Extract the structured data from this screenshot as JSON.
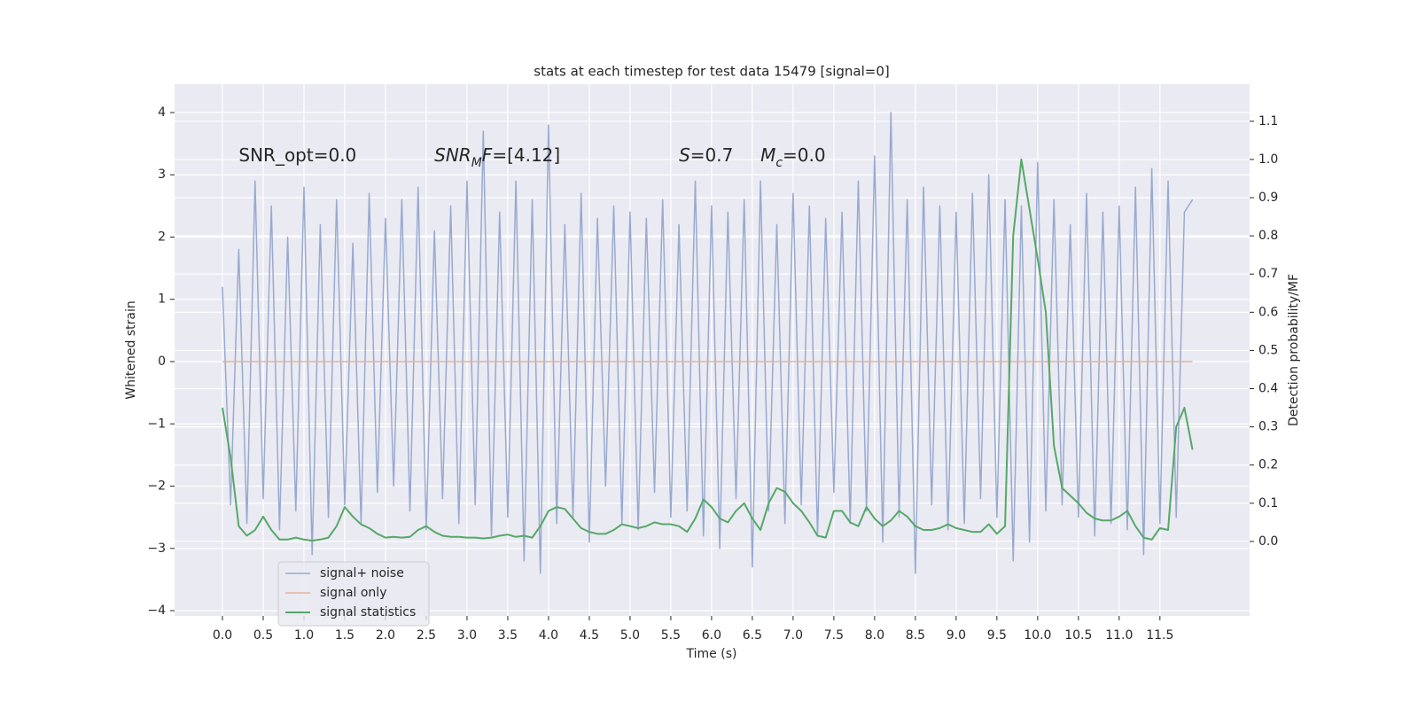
{
  "chart_data": {
    "type": "line",
    "title": "stats at each timestep for test data 15479 [signal=0]",
    "xlabel": "Time (s)",
    "ylabel": "Whitened strain",
    "y2label": "Detection probability/MF",
    "background": "#eaeaf2",
    "grid": true,
    "legend": "lower left",
    "annotations": [
      {
        "parts": [
          {
            "text": "SNR_opt=0.0"
          }
        ],
        "x": 0.2,
        "y": 3.3
      },
      {
        "parts": [
          {
            "text": "SNR",
            "style": "italic"
          },
          {
            "text": "M",
            "style": "sub"
          },
          {
            "text": "F",
            "style": "italic"
          },
          {
            "text": "=[4.12]"
          }
        ],
        "x": 2.6,
        "y": 3.3
      },
      {
        "parts": [
          {
            "text": "S",
            "style": "italic"
          },
          {
            "text": "=0.7"
          }
        ],
        "x": 5.6,
        "y": 3.3
      },
      {
        "parts": [
          {
            "text": "M",
            "style": "italic"
          },
          {
            "text": "c",
            "style": "sub"
          },
          {
            "text": "=0.0"
          }
        ],
        "x": 6.6,
        "y": 3.3
      }
    ],
    "xlim": [
      -0.587,
      12.6
    ],
    "ylim": [
      -4.085,
      4.455
    ],
    "y2lim": [
      -0.195,
      1.197
    ],
    "xticks": [
      {
        "value": 0,
        "label": "0.0"
      },
      {
        "value": 0.5,
        "label": "0.5"
      },
      {
        "value": 1,
        "label": "1.0"
      },
      {
        "value": 1.5,
        "label": "1.5"
      },
      {
        "value": 2,
        "label": "2.0"
      },
      {
        "value": 2.5,
        "label": "2.5"
      },
      {
        "value": 3,
        "label": "3.0"
      },
      {
        "value": 3.5,
        "label": "3.5"
      },
      {
        "value": 4,
        "label": "4.0"
      },
      {
        "value": 4.5,
        "label": "4.5"
      },
      {
        "value": 5,
        "label": "5.0"
      },
      {
        "value": 5.5,
        "label": "5.5"
      },
      {
        "value": 6,
        "label": "6.0"
      },
      {
        "value": 6.5,
        "label": "6.5"
      },
      {
        "value": 7,
        "label": "7.0"
      },
      {
        "value": 7.5,
        "label": "7.5"
      },
      {
        "value": 8,
        "label": "8.0"
      },
      {
        "value": 8.5,
        "label": "8.5"
      },
      {
        "value": 9,
        "label": "9.0"
      },
      {
        "value": 9.5,
        "label": "9.5"
      },
      {
        "value": 10,
        "label": "10.0"
      },
      {
        "value": 10.5,
        "label": "10.5"
      },
      {
        "value": 11,
        "label": "11.0"
      },
      {
        "value": 11.5,
        "label": "11.5"
      }
    ],
    "yticks": [
      {
        "value": -4,
        "label": "−4"
      },
      {
        "value": -3,
        "label": "−3"
      },
      {
        "value": -2,
        "label": "−2"
      },
      {
        "value": -1,
        "label": "−1"
      },
      0,
      1,
      2,
      3,
      4
    ],
    "y2ticks": [
      {
        "value": 0,
        "label": "0.0"
      },
      {
        "value": 0.1,
        "label": "0.1"
      },
      {
        "value": 0.2,
        "label": "0.2"
      },
      {
        "value": 0.3,
        "label": "0.3"
      },
      {
        "value": 0.4,
        "label": "0.4"
      },
      {
        "value": 0.5,
        "label": "0.5"
      },
      {
        "value": 0.6,
        "label": "0.6"
      },
      {
        "value": 0.7,
        "label": "0.7"
      },
      {
        "value": 0.8,
        "label": "0.8"
      },
      {
        "value": 0.9,
        "label": "0.9"
      },
      {
        "value": 1,
        "label": "1.0"
      },
      {
        "value": 1.1,
        "label": "1.1"
      }
    ],
    "x": [
      0,
      0.1,
      0.2,
      0.3,
      0.4,
      0.5,
      0.6,
      0.7,
      0.8,
      0.9,
      1,
      1.1,
      1.2,
      1.3,
      1.4,
      1.5,
      1.6,
      1.7,
      1.8,
      1.9,
      2,
      2.1,
      2.2,
      2.3,
      2.4,
      2.5,
      2.6,
      2.7,
      2.8,
      2.9,
      3,
      3.1,
      3.2,
      3.3,
      3.4,
      3.5,
      3.6,
      3.7,
      3.8,
      3.9,
      4,
      4.1,
      4.2,
      4.3,
      4.4,
      4.5,
      4.6,
      4.7,
      4.8,
      4.9,
      5,
      5.1,
      5.2,
      5.3,
      5.4,
      5.5,
      5.6,
      5.7,
      5.8,
      5.9,
      6,
      6.1,
      6.2,
      6.3,
      6.4,
      6.5,
      6.6,
      6.7,
      6.8,
      6.9,
      7,
      7.1,
      7.2,
      7.3,
      7.4,
      7.5,
      7.6,
      7.7,
      7.8,
      7.9,
      8,
      8.1,
      8.2,
      8.3,
      8.4,
      8.5,
      8.6,
      8.7,
      8.8,
      8.9,
      9,
      9.1,
      9.2,
      9.3,
      9.4,
      9.5,
      9.6,
      9.7,
      9.8,
      9.9,
      10,
      10.1,
      10.2,
      10.3,
      10.4,
      10.5,
      10.6,
      10.7,
      10.8,
      10.9,
      11,
      11.1,
      11.2,
      11.3,
      11.4,
      11.5,
      11.6,
      11.7,
      11.8,
      11.9
    ],
    "series": [
      {
        "name": "signal+ noise",
        "color": "#98aad0",
        "width": 1.5,
        "values": [
          1.2,
          -2.3,
          1.8,
          -2.6,
          2.9,
          -2.2,
          2.5,
          -2.7,
          2.0,
          -2.4,
          2.8,
          -3.1,
          2.2,
          -2.5,
          2.6,
          -2.3,
          1.9,
          -2.6,
          2.7,
          -2.1,
          2.3,
          -2.0,
          2.6,
          -2.4,
          2.8,
          -2.7,
          2.1,
          -2.2,
          2.5,
          -2.6,
          2.9,
          -2.3,
          3.7,
          -2.8,
          2.4,
          -2.5,
          2.9,
          -3.2,
          2.6,
          -3.4,
          3.8,
          -2.6,
          2.2,
          -2.5,
          2.7,
          -2.9,
          2.3,
          -2.0,
          2.5,
          -2.6,
          2.4,
          -2.7,
          2.3,
          -2.1,
          2.6,
          -2.5,
          2.2,
          -2.4,
          2.9,
          -2.8,
          2.5,
          -3.0,
          2.4,
          -2.2,
          2.6,
          -3.3,
          2.9,
          -2.4,
          2.2,
          -2.6,
          2.7,
          -2.3,
          2.5,
          -2.8,
          2.3,
          -2.1,
          2.4,
          -2.6,
          2.9,
          -2.4,
          3.3,
          -2.9,
          4.0,
          -2.5,
          2.6,
          -3.4,
          2.8,
          -2.3,
          2.5,
          -2.7,
          2.4,
          -2.6,
          2.7,
          -2.2,
          3.0,
          -2.5,
          2.6,
          -3.2,
          2.5,
          -2.9,
          3.2,
          -2.4,
          2.6,
          -2.3,
          2.2,
          -2.5,
          2.7,
          -2.8,
          2.4,
          -2.6,
          2.5,
          -2.7,
          2.8,
          -3.1,
          3.1,
          -2.6,
          2.9,
          -2.5,
          2.4,
          2.6
        ]
      },
      {
        "name": "signal only",
        "color": "#e8a88a",
        "width": 1.2,
        "values": [
          0,
          0,
          0,
          0,
          0,
          0,
          0,
          0,
          0,
          0,
          0,
          0,
          0,
          0,
          0,
          0,
          0,
          0,
          0,
          0,
          0,
          0,
          0,
          0,
          0,
          0,
          0,
          0,
          0,
          0,
          0,
          0,
          0,
          0,
          0,
          0,
          0,
          0,
          0,
          0,
          0,
          0,
          0,
          0,
          0,
          0,
          0,
          0,
          0,
          0,
          0,
          0,
          0,
          0,
          0,
          0,
          0,
          0,
          0,
          0,
          0,
          0,
          0,
          0,
          0,
          0,
          0,
          0,
          0,
          0,
          0,
          0,
          0,
          0,
          0,
          0,
          0,
          0,
          0,
          0,
          0,
          0,
          0,
          0,
          0,
          0,
          0,
          0,
          0,
          0,
          0,
          0,
          0,
          0,
          0,
          0,
          0,
          0,
          0,
          0,
          0,
          0,
          0,
          0,
          0,
          0,
          0,
          0,
          0,
          0,
          0,
          0,
          0,
          0,
          0,
          0,
          0,
          0,
          0,
          0
        ]
      },
      {
        "name": "signal statistics",
        "color": "#55a868",
        "width": 2,
        "axis": "y2",
        "values": [
          0.35,
          0.22,
          0.04,
          0.015,
          0.03,
          0.065,
          0.03,
          0.005,
          0.005,
          0.01,
          0.005,
          0.002,
          0.005,
          0.01,
          0.04,
          0.09,
          0.065,
          0.045,
          0.035,
          0.02,
          0.01,
          0.012,
          0.01,
          0.012,
          0.03,
          0.04,
          0.025,
          0.015,
          0.012,
          0.012,
          0.01,
          0.01,
          0.008,
          0.01,
          0.015,
          0.018,
          0.012,
          0.015,
          0.01,
          0.04,
          0.08,
          0.09,
          0.085,
          0.06,
          0.035,
          0.025,
          0.02,
          0.02,
          0.03,
          0.045,
          0.04,
          0.035,
          0.04,
          0.05,
          0.045,
          0.045,
          0.04,
          0.025,
          0.06,
          0.11,
          0.09,
          0.06,
          0.05,
          0.08,
          0.1,
          0.06,
          0.03,
          0.1,
          0.14,
          0.13,
          0.1,
          0.08,
          0.05,
          0.015,
          0.01,
          0.08,
          0.08,
          0.05,
          0.04,
          0.09,
          0.06,
          0.04,
          0.055,
          0.08,
          0.065,
          0.04,
          0.03,
          0.03,
          0.035,
          0.045,
          0.035,
          0.03,
          0.025,
          0.025,
          0.045,
          0.02,
          0.04,
          0.8,
          1.0,
          0.87,
          0.74,
          0.6,
          0.25,
          0.14,
          0.12,
          0.1,
          0.075,
          0.06,
          0.055,
          0.055,
          0.065,
          0.08,
          0.04,
          0.01,
          0.005,
          0.035,
          0.03,
          0.3,
          0.35,
          0.24
        ]
      }
    ]
  }
}
